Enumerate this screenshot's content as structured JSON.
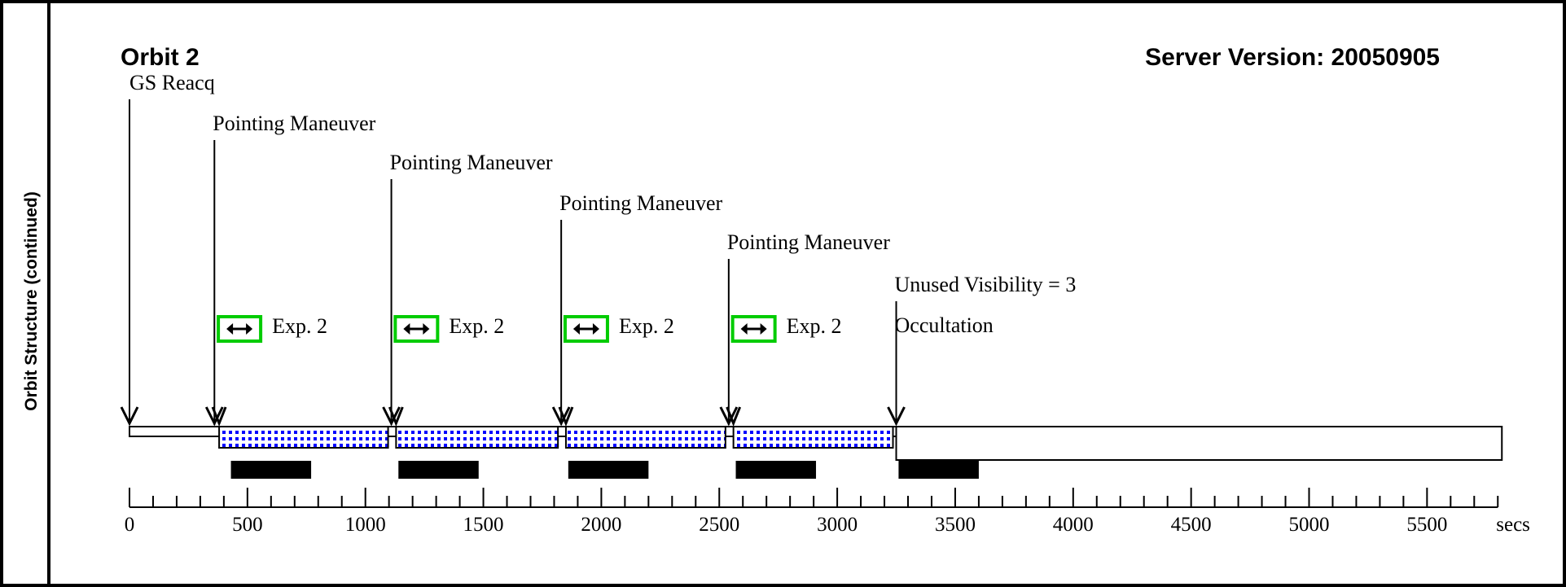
{
  "sidebar": {
    "label": "Orbit Structure (continued)"
  },
  "header": {
    "orbit_title": "Orbit 2",
    "server_version": "Server Version: 20050905"
  },
  "axis": {
    "unit": "secs",
    "min": 0,
    "max": 5800,
    "major_ticks": [
      0,
      500,
      1000,
      1500,
      2000,
      2500,
      3000,
      3500,
      4000,
      4500,
      5000,
      5500
    ],
    "minor_step": 100
  },
  "events": [
    {
      "label": "GS Reacq",
      "time": 0
    },
    {
      "label": "Pointing Maneuver",
      "time": 360
    },
    {
      "label": "Pointing Maneuver",
      "time": 1110
    },
    {
      "label": "Pointing Maneuver",
      "time": 1830
    },
    {
      "label": "Pointing Maneuver",
      "time": 2540
    },
    {
      "label": "Unused Visibility = 3",
      "time": 3250
    },
    {
      "label": "Occultation",
      "time": 3250
    }
  ],
  "exposures": [
    {
      "label": "Exp. 2",
      "start": 380,
      "end": 1110
    },
    {
      "label": "Exp. 2",
      "start": 1130,
      "end": 1830
    },
    {
      "label": "Exp. 2",
      "start": 1850,
      "end": 2540
    },
    {
      "label": "Exp. 2",
      "start": 2560,
      "end": 3250
    }
  ],
  "readouts": [
    {
      "start": 430,
      "end": 770
    },
    {
      "start": 1140,
      "end": 1480
    },
    {
      "start": 1860,
      "end": 2200
    },
    {
      "start": 2570,
      "end": 2910
    },
    {
      "start": 3260,
      "end": 3600
    }
  ],
  "visibility_bar": {
    "start": 0,
    "end": 3250
  },
  "occultation_bar": {
    "start": 3250,
    "end": 5800
  },
  "colors": {
    "exposure_fill": "#0000ff",
    "exposure_icon": "#00cc00",
    "line": "#000000"
  }
}
